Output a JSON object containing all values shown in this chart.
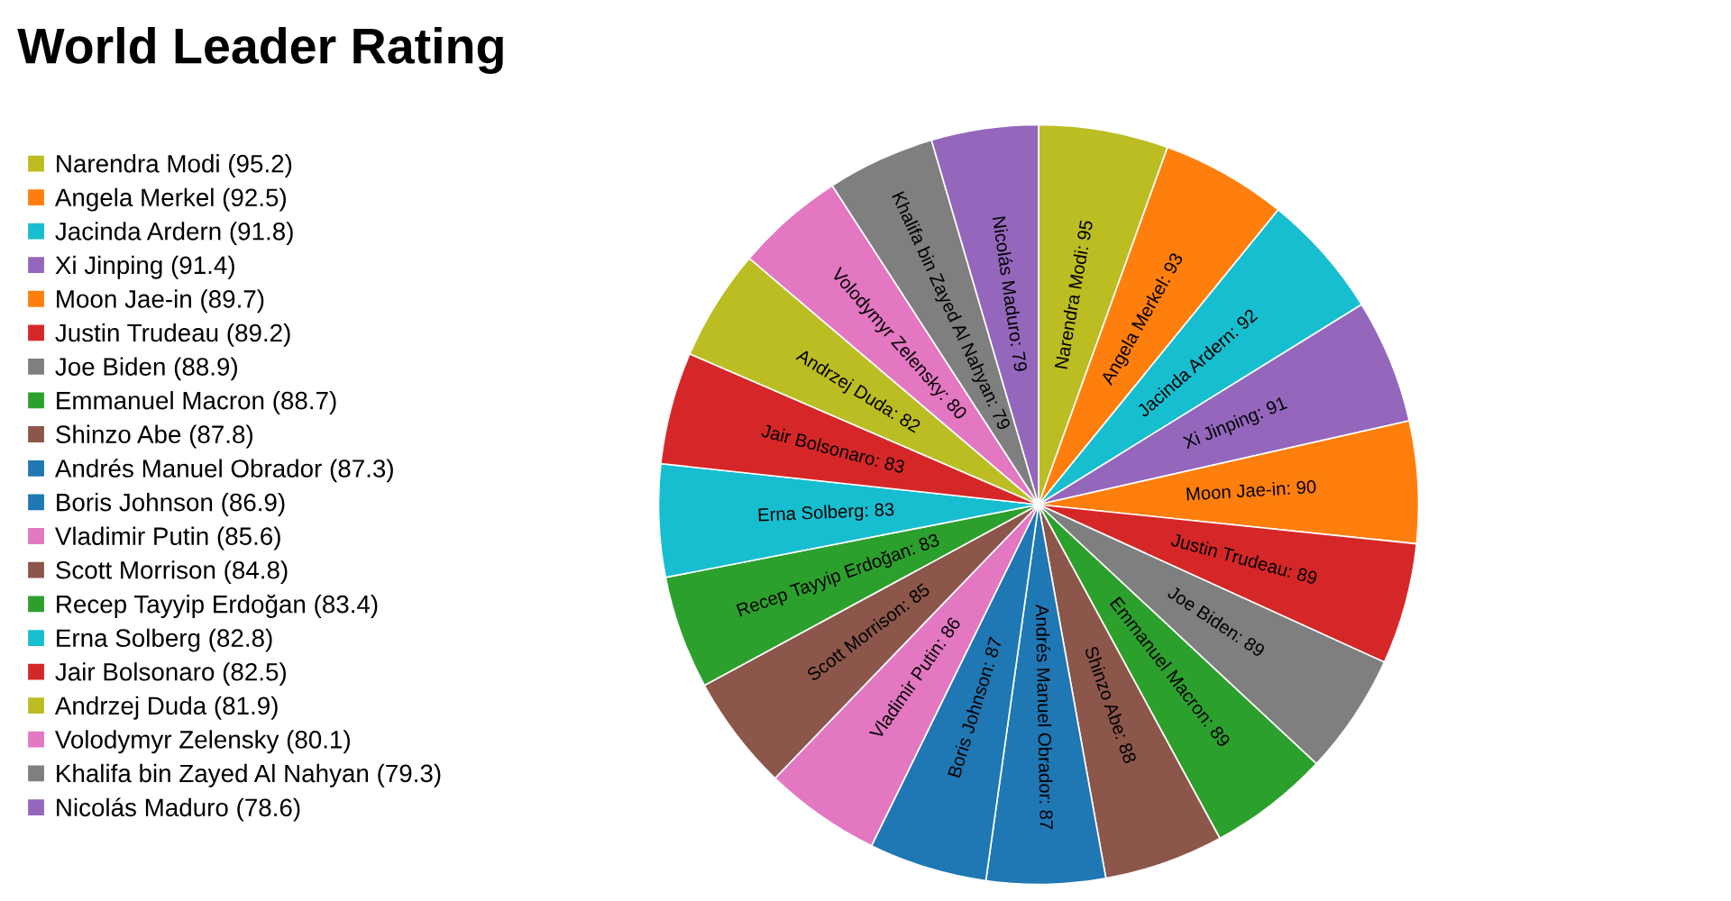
{
  "chart_data": {
    "type": "pie",
    "title": "World Leader Rating",
    "categories": [
      "Narendra Modi (95.2)",
      "Angela Merkel (92.5)",
      "Jacinda Ardern (91.8)",
      "Xi Jinping (91.4)",
      "Moon Jae-in (89.7)",
      "Justin Trudeau (89.2)",
      "Joe Biden (88.9)",
      "Emmanuel Macron (88.7)",
      "Shinzo Abe (87.8)",
      "Andrés Manuel Obrador (87.3)",
      "Boris Johnson (86.9)",
      "Vladimir Putin (85.6)",
      "Scott Morrison (84.8)",
      "Recep Tayyip Erdoğan (83.4)",
      "Erna Solberg (82.8)",
      "Jair Bolsonaro (82.5)",
      "Andrzej Duda (81.9)",
      "Volodymyr Zelensky (80.1)",
      "Khalifa bin Zayed Al Nahyan (79.3)",
      "Nicolás Maduro (78.6)"
    ],
    "values": [
      95.2,
      92.5,
      91.8,
      91.4,
      89.7,
      89.2,
      88.9,
      88.7,
      87.8,
      87.3,
      86.9,
      85.6,
      84.8,
      83.4,
      82.8,
      82.5,
      81.9,
      80.1,
      79.3,
      78.6
    ],
    "colors": [
      "#bcbd22",
      "#ff7f0e",
      "#17becf",
      "#9467bd",
      "#ff7f0e",
      "#d62728",
      "#7f7f7f",
      "#2ca02c",
      "#8c564b",
      "#1f77b4",
      "#1f77b4",
      "#e377c2",
      "#8c564b",
      "#2ca02c",
      "#17becf",
      "#d62728",
      "#bcbd22",
      "#e377c2",
      "#7f7f7f",
      "#9467bd"
    ],
    "value_labels": [
      "Narendra Modi: 95",
      "Angela Merkel: 93",
      "Jacinda Ardern: 92",
      "Xi Jinping: 91",
      "Moon Jae-in: 90",
      "Justin Trudeau: 89",
      "Joe Biden: 89",
      "Emmanuel Macron: 89",
      "Shinzo Abe: 88",
      "Andrés Manuel Obrador: 87",
      "Boris Johnson: 87",
      "Vladimir Putin: 86",
      "Scott Morrison: 85",
      "Recep Tayyip Erdoğan: 83",
      "Erna Solberg: 83",
      "Jair Bolsonaro: 83",
      "Andrzej Duda: 82",
      "Volodymyr Zelensky: 80",
      "Khalifa bin Zayed Al Nahyan: 79",
      "Nicolás Maduro: 79"
    ],
    "legend": "left"
  }
}
